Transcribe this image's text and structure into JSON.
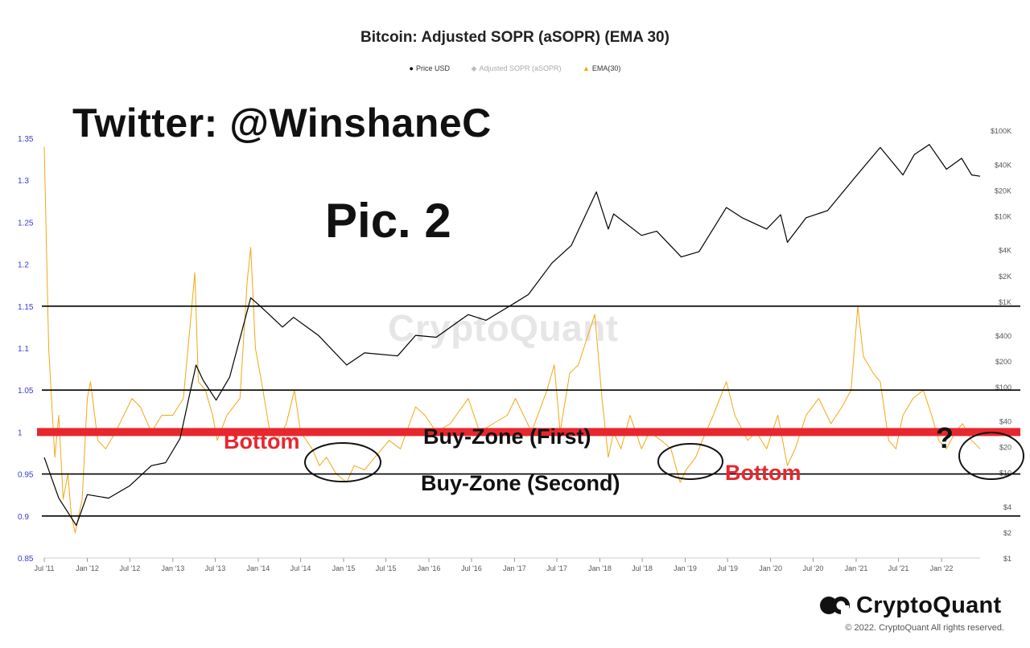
{
  "chart_title": "Bitcoin: Adjusted SOPR (aSOPR) (EMA 30)",
  "legend": [
    {
      "label": "Price USD",
      "marker": "●",
      "color": "#000000"
    },
    {
      "label": "Adjusted SOPR (aSOPR)",
      "marker": "◆",
      "color": "#bbbbbb"
    },
    {
      "label": "EMA(30)",
      "marker": "▲",
      "color": "#f3a712"
    }
  ],
  "annotations": {
    "twitter": "Twitter: @WinshaneC",
    "pic": "Pic. 2",
    "bottom_left": "Bottom",
    "bottom_right": "Bottom",
    "buy_zone_first": "Buy-Zone (First)",
    "buy_zone_second": "Buy-Zone (Second)",
    "question": "?"
  },
  "watermark": "CryptoQuant",
  "brand": {
    "name": "CryptoQuant",
    "copyright": "© 2022. CryptoQuant All rights reserved."
  },
  "colors": {
    "price": "#000000",
    "ema": "#f3a712",
    "reference_red": "#e8262e",
    "left_axis": "#3a3ad6",
    "grid_line": "#000000"
  },
  "chart_data": {
    "type": "line",
    "left_axis": {
      "label": "",
      "ticks": [
        0.85,
        0.9,
        0.95,
        1,
        1.05,
        1.1,
        1.15,
        1.2,
        1.25,
        1.3,
        1.35
      ],
      "tick_labels": [
        "0.85",
        "0.9",
        "0.95",
        "1",
        "1.05",
        "1.1",
        "1.15",
        "1.2",
        "1.25",
        "1.3",
        "1.35"
      ],
      "range": [
        0.85,
        1.35
      ]
    },
    "right_axis": {
      "scale": "log",
      "ticks": [
        1,
        2,
        4,
        10,
        20,
        40,
        100,
        200,
        400,
        1000,
        2000,
        4000,
        10000,
        20000,
        40000,
        100000
      ],
      "tick_labels": [
        "$1",
        "$2",
        "$4",
        "$10",
        "$20",
        "$40",
        "$100",
        "$200",
        "$400",
        "$1K",
        "$2K",
        "$4K",
        "$10K",
        "$20K",
        "$40K",
        "$100K"
      ]
    },
    "x_ticks": [
      "Jul '11",
      "Jan '12",
      "Jul '12",
      "Jan '13",
      "Jul '13",
      "Jan '14",
      "Jul '14",
      "Jan '15",
      "Jul '15",
      "Jan '16",
      "Jul '16",
      "Jan '17",
      "Jul '17",
      "Jan '18",
      "Jul '18",
      "Jan '19",
      "Jul '19",
      "Jan '20",
      "Jul '20",
      "Jan '21",
      "Jul '21",
      "Jan '22"
    ],
    "x_range": [
      "2011-07-01",
      "2022-06-15"
    ],
    "horizontal_lines": [
      {
        "value": 1.15,
        "color": "#000000"
      },
      {
        "value": 1.05,
        "color": "#000000"
      },
      {
        "value": 1.0,
        "color": "#e8262e"
      },
      {
        "value": 0.95,
        "color": "#000000"
      },
      {
        "value": 0.9,
        "color": "#000000"
      }
    ],
    "series": [
      {
        "name": "Price USD",
        "axis": "right",
        "color": "#000000",
        "points": [
          [
            "2011-07-01",
            15
          ],
          [
            "2011-09-01",
            5
          ],
          [
            "2011-11-15",
            2.4
          ],
          [
            "2012-01-01",
            5.5
          ],
          [
            "2012-04-01",
            5
          ],
          [
            "2012-07-01",
            7
          ],
          [
            "2012-10-01",
            12
          ],
          [
            "2012-12-01",
            13
          ],
          [
            "2013-02-01",
            25
          ],
          [
            "2013-04-10",
            180
          ],
          [
            "2013-05-10",
            120
          ],
          [
            "2013-07-05",
            70
          ],
          [
            "2013-09-01",
            130
          ],
          [
            "2013-11-30",
            1100
          ],
          [
            "2014-01-15",
            850
          ],
          [
            "2014-04-15",
            500
          ],
          [
            "2014-06-01",
            650
          ],
          [
            "2014-09-15",
            400
          ],
          [
            "2015-01-14",
            180
          ],
          [
            "2015-04-01",
            250
          ],
          [
            "2015-08-20",
            230
          ],
          [
            "2015-11-05",
            400
          ],
          [
            "2016-02-01",
            380
          ],
          [
            "2016-06-17",
            700
          ],
          [
            "2016-09-01",
            600
          ],
          [
            "2016-12-31",
            950
          ],
          [
            "2017-03-01",
            1200
          ],
          [
            "2017-06-10",
            2800
          ],
          [
            "2017-09-01",
            4500
          ],
          [
            "2017-12-17",
            19000
          ],
          [
            "2018-02-06",
            7000
          ],
          [
            "2018-03-01",
            10500
          ],
          [
            "2018-06-28",
            5900
          ],
          [
            "2018-09-01",
            6600
          ],
          [
            "2018-12-15",
            3300
          ],
          [
            "2019-03-01",
            3800
          ],
          [
            "2019-06-26",
            12500
          ],
          [
            "2019-09-01",
            9500
          ],
          [
            "2019-12-15",
            7000
          ],
          [
            "2020-02-13",
            10300
          ],
          [
            "2020-03-13",
            4900
          ],
          [
            "2020-06-01",
            9500
          ],
          [
            "2020-09-01",
            11500
          ],
          [
            "2020-12-31",
            29000
          ],
          [
            "2021-04-14",
            63000
          ],
          [
            "2021-07-20",
            30000
          ],
          [
            "2021-09-07",
            52000
          ],
          [
            "2021-11-10",
            68000
          ],
          [
            "2022-01-22",
            35000
          ],
          [
            "2022-03-28",
            47000
          ],
          [
            "2022-05-10",
            30000
          ],
          [
            "2022-06-15",
            29000
          ]
        ]
      },
      {
        "name": "EMA(30)",
        "axis": "left",
        "color": "#f3a712",
        "points": [
          [
            "2011-07-01",
            1.34
          ],
          [
            "2011-07-20",
            1.1
          ],
          [
            "2011-08-15",
            0.97
          ],
          [
            "2011-09-01",
            1.02
          ],
          [
            "2011-09-20",
            0.92
          ],
          [
            "2011-10-10",
            0.95
          ],
          [
            "2011-10-25",
            0.9
          ],
          [
            "2011-11-10",
            0.88
          ],
          [
            "2011-12-10",
            0.92
          ],
          [
            "2012-01-01",
            1.04
          ],
          [
            "2012-01-15",
            1.06
          ],
          [
            "2012-02-15",
            0.99
          ],
          [
            "2012-03-20",
            0.98
          ],
          [
            "2012-05-01",
            1.0
          ],
          [
            "2012-07-10",
            1.04
          ],
          [
            "2012-08-15",
            1.03
          ],
          [
            "2012-10-01",
            1.0
          ],
          [
            "2012-11-15",
            1.02
          ],
          [
            "2013-01-01",
            1.02
          ],
          [
            "2013-02-15",
            1.04
          ],
          [
            "2013-03-20",
            1.14
          ],
          [
            "2013-04-05",
            1.19
          ],
          [
            "2013-04-20",
            1.06
          ],
          [
            "2013-05-20",
            1.05
          ],
          [
            "2013-06-20",
            1.02
          ],
          [
            "2013-07-10",
            0.99
          ],
          [
            "2013-08-20",
            1.02
          ],
          [
            "2013-10-15",
            1.04
          ],
          [
            "2013-11-15",
            1.18
          ],
          [
            "2013-11-30",
            1.22
          ],
          [
            "2013-12-20",
            1.1
          ],
          [
            "2014-01-15",
            1.06
          ],
          [
            "2014-02-20",
            1.0
          ],
          [
            "2014-03-25",
            0.99
          ],
          [
            "2014-05-01",
            1.01
          ],
          [
            "2014-06-05",
            1.05
          ],
          [
            "2014-07-01",
            1.0
          ],
          [
            "2014-08-20",
            0.98
          ],
          [
            "2014-09-20",
            0.96
          ],
          [
            "2014-10-20",
            0.97
          ],
          [
            "2014-12-01",
            0.95
          ],
          [
            "2015-01-14",
            0.94
          ],
          [
            "2015-02-15",
            0.96
          ],
          [
            "2015-04-01",
            0.955
          ],
          [
            "2015-05-15",
            0.97
          ],
          [
            "2015-07-15",
            0.99
          ],
          [
            "2015-09-01",
            0.98
          ],
          [
            "2015-11-05",
            1.03
          ],
          [
            "2015-12-15",
            1.02
          ],
          [
            "2016-02-01",
            1.0
          ],
          [
            "2016-04-01",
            1.01
          ],
          [
            "2016-06-17",
            1.04
          ],
          [
            "2016-08-05",
            1.0
          ],
          [
            "2016-10-01",
            1.01
          ],
          [
            "2016-12-01",
            1.02
          ],
          [
            "2017-01-05",
            1.04
          ],
          [
            "2017-03-15",
            1.0
          ],
          [
            "2017-05-20",
            1.05
          ],
          [
            "2017-06-20",
            1.08
          ],
          [
            "2017-07-15",
            1.0
          ],
          [
            "2017-08-25",
            1.07
          ],
          [
            "2017-10-01",
            1.08
          ],
          [
            "2017-12-10",
            1.14
          ],
          [
            "2018-01-10",
            1.04
          ],
          [
            "2018-02-06",
            0.97
          ],
          [
            "2018-03-01",
            1.0
          ],
          [
            "2018-04-01",
            0.98
          ],
          [
            "2018-05-10",
            1.02
          ],
          [
            "2018-06-28",
            0.98
          ],
          [
            "2018-08-01",
            1.0
          ],
          [
            "2018-09-20",
            0.99
          ],
          [
            "2018-11-01",
            0.98
          ],
          [
            "2018-12-10",
            0.94
          ],
          [
            "2019-01-05",
            0.955
          ],
          [
            "2019-02-15",
            0.97
          ],
          [
            "2019-03-15",
            0.99
          ],
          [
            "2019-05-01",
            1.02
          ],
          [
            "2019-06-26",
            1.06
          ],
          [
            "2019-08-01",
            1.02
          ],
          [
            "2019-09-25",
            0.99
          ],
          [
            "2019-11-01",
            1.0
          ],
          [
            "2019-12-15",
            0.98
          ],
          [
            "2020-02-01",
            1.02
          ],
          [
            "2020-03-13",
            0.96
          ],
          [
            "2020-04-15",
            0.98
          ],
          [
            "2020-06-01",
            1.02
          ],
          [
            "2020-07-25",
            1.04
          ],
          [
            "2020-09-15",
            1.01
          ],
          [
            "2020-11-01",
            1.03
          ],
          [
            "2020-12-10",
            1.05
          ],
          [
            "2021-01-08",
            1.15
          ],
          [
            "2021-02-01",
            1.09
          ],
          [
            "2021-03-15",
            1.07
          ],
          [
            "2021-04-14",
            1.06
          ],
          [
            "2021-05-20",
            0.99
          ],
          [
            "2021-06-20",
            0.98
          ],
          [
            "2021-07-20",
            1.02
          ],
          [
            "2021-09-01",
            1.04
          ],
          [
            "2021-10-15",
            1.05
          ],
          [
            "2021-11-20",
            1.02
          ],
          [
            "2021-12-20",
            0.99
          ],
          [
            "2022-01-22",
            0.98
          ],
          [
            "2022-03-01",
            1.0
          ],
          [
            "2022-04-01",
            1.01
          ],
          [
            "2022-05-10",
            0.99
          ],
          [
            "2022-06-15",
            0.98
          ]
        ]
      }
    ]
  }
}
